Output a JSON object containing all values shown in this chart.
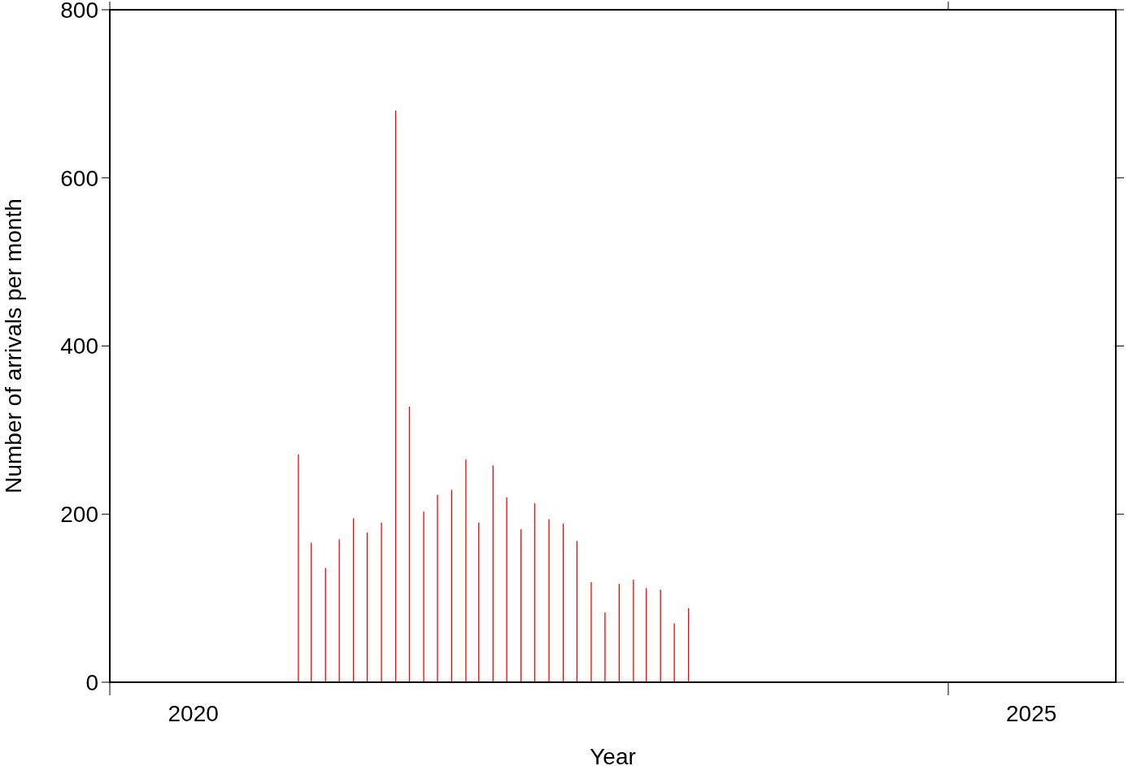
{
  "chart_data": {
    "type": "bar",
    "xlabel": "Year",
    "ylabel": "Number of arrivals per month",
    "x": [
      "2021-02-15",
      "2021-03-15",
      "2021-04-15",
      "2021-05-15",
      "2021-06-15",
      "2021-07-15",
      "2021-08-15",
      "2021-09-15",
      "2021-10-15",
      "2021-11-15",
      "2021-12-15",
      "2022-01-15",
      "2022-02-15",
      "2022-03-15",
      "2022-04-15",
      "2022-05-15",
      "2022-06-15",
      "2022-07-15",
      "2022-08-15",
      "2022-09-15",
      "2022-10-15",
      "2022-11-15",
      "2022-12-15",
      "2023-01-15",
      "2023-02-15",
      "2023-03-15",
      "2023-04-15",
      "2023-05-15",
      "2023-06-15"
    ],
    "values": [
      271,
      166,
      136,
      170,
      195,
      178,
      190,
      680,
      328,
      203,
      223,
      229,
      265,
      190,
      258,
      220,
      182,
      213,
      194,
      189,
      168,
      119,
      83,
      117,
      122,
      112,
      110,
      70,
      88
    ],
    "color": "#ff0000",
    "xlim": [
      "2020-01-01",
      "2026-01-01"
    ],
    "xticks": [
      {
        "value": "2020-01-01",
        "label": null
      },
      {
        "value": "2020-07-01",
        "label": "2020"
      },
      {
        "value": "2025-01-01",
        "label": null
      },
      {
        "value": "2025-07-01",
        "label": "2025"
      }
    ],
    "ylim": [
      0,
      800
    ],
    "yticks": [
      0,
      200,
      400,
      600,
      800
    ],
    "grid": false
  }
}
